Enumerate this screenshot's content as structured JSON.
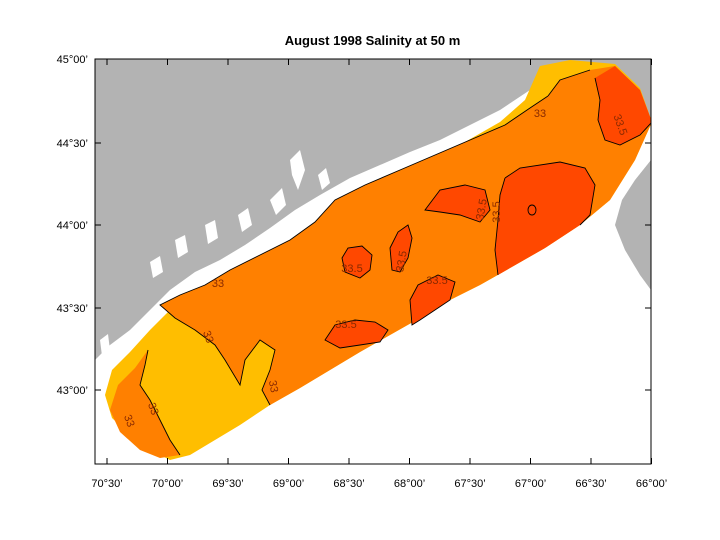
{
  "title": "August 1998  Salinity at 50 m",
  "colors": {
    "land": "#b3b3b3",
    "water_nodata": "#ffffff",
    "low": "#ffbe00",
    "mid": "#ff8000",
    "high": "#ff4800",
    "contour": "#000000"
  },
  "lat_labels": [
    "45°00’",
    "44°30’",
    "44°00’",
    "43°30’",
    "43°00’"
  ],
  "lon_labels": [
    "70°30’",
    "70°00’",
    "69°30’",
    "69°00’",
    "68°30’",
    "68°00’",
    "67°30’",
    "67°00’",
    "66°30’",
    "66°00’"
  ],
  "contour_labels": [
    "33",
    "33",
    "33",
    "33",
    "33",
    "33",
    "33.5",
    "33.5",
    "33.5",
    "33.5",
    "33.5",
    "33.5",
    "33.5"
  ]
}
